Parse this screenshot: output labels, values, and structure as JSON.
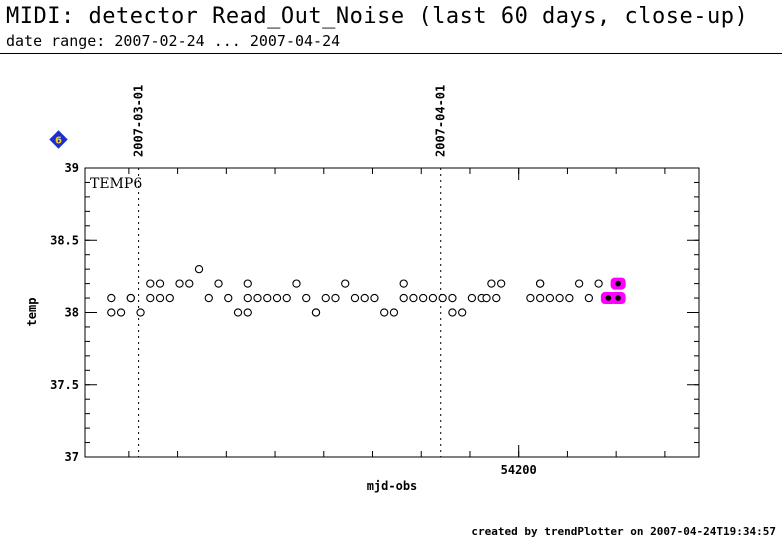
{
  "header": {
    "title": "MIDI: detector Read_Out_Noise (last 60 days, close-up)",
    "subtitle": "date range: 2007-02-24 ... 2007-04-24"
  },
  "footer": {
    "text": "created by trendPlotter on 2007-04-24T19:34:57"
  },
  "badge": {
    "text": "6",
    "color": "#1a2fd0",
    "text_color": "#ffd400"
  },
  "colors": {
    "highlight": "#ff00ff",
    "axis": "#000000"
  },
  "chart_data": {
    "type": "scatter",
    "panel_label": "TEMP6",
    "xlabel": "mjd-obs",
    "ylabel": "temp",
    "xlim": [
      54155.5,
      54218.5
    ],
    "ylim": [
      37,
      39
    ],
    "yticks": [
      37,
      37.5,
      38,
      38.5,
      39
    ],
    "ytick_labels": [
      "37",
      "37.5",
      "38",
      "38.5",
      "39"
    ],
    "xticks": [
      54200
    ],
    "xtick_labels": [
      "54200"
    ],
    "date_markers": [
      {
        "x": 54161.0,
        "label": "2007-03-01"
      },
      {
        "x": 54192.0,
        "label": "2007-04-01"
      }
    ],
    "points": [
      {
        "x": 54158.2,
        "y": 38.1
      },
      {
        "x": 54158.2,
        "y": 38.0
      },
      {
        "x": 54159.2,
        "y": 38.0
      },
      {
        "x": 54160.2,
        "y": 38.1
      },
      {
        "x": 54160.2,
        "y": 38.1
      },
      {
        "x": 54161.2,
        "y": 38.0
      },
      {
        "x": 54162.2,
        "y": 38.2
      },
      {
        "x": 54162.2,
        "y": 38.1
      },
      {
        "x": 54163.2,
        "y": 38.2
      },
      {
        "x": 54163.2,
        "y": 38.1
      },
      {
        "x": 54164.2,
        "y": 38.1
      },
      {
        "x": 54165.2,
        "y": 38.2
      },
      {
        "x": 54166.2,
        "y": 38.2
      },
      {
        "x": 54167.2,
        "y": 38.3
      },
      {
        "x": 54168.2,
        "y": 38.1
      },
      {
        "x": 54169.2,
        "y": 38.2
      },
      {
        "x": 54170.2,
        "y": 38.1
      },
      {
        "x": 54171.2,
        "y": 38.0
      },
      {
        "x": 54172.2,
        "y": 38.2
      },
      {
        "x": 54172.2,
        "y": 38.1
      },
      {
        "x": 54172.2,
        "y": 38.0
      },
      {
        "x": 54173.2,
        "y": 38.1
      },
      {
        "x": 54174.2,
        "y": 38.1
      },
      {
        "x": 54175.2,
        "y": 38.1
      },
      {
        "x": 54176.2,
        "y": 38.1
      },
      {
        "x": 54177.2,
        "y": 38.2
      },
      {
        "x": 54178.2,
        "y": 38.1
      },
      {
        "x": 54179.2,
        "y": 38.0
      },
      {
        "x": 54179.2,
        "y": 38.0
      },
      {
        "x": 54180.2,
        "y": 38.1
      },
      {
        "x": 54181.2,
        "y": 38.1
      },
      {
        "x": 54182.2,
        "y": 38.2
      },
      {
        "x": 54183.2,
        "y": 38.1
      },
      {
        "x": 54184.2,
        "y": 38.1
      },
      {
        "x": 54185.2,
        "y": 38.1
      },
      {
        "x": 54186.2,
        "y": 38.0
      },
      {
        "x": 54187.2,
        "y": 38.0
      },
      {
        "x": 54188.2,
        "y": 38.2
      },
      {
        "x": 54188.2,
        "y": 38.1
      },
      {
        "x": 54189.2,
        "y": 38.1
      },
      {
        "x": 54190.2,
        "y": 38.1
      },
      {
        "x": 54191.2,
        "y": 38.1
      },
      {
        "x": 54192.2,
        "y": 38.1
      },
      {
        "x": 54193.2,
        "y": 38.1
      },
      {
        "x": 54193.2,
        "y": 38.0
      },
      {
        "x": 54194.2,
        "y": 38.0
      },
      {
        "x": 54195.2,
        "y": 38.1
      },
      {
        "x": 54196.2,
        "y": 38.1
      },
      {
        "x": 54196.7,
        "y": 38.1
      },
      {
        "x": 54197.2,
        "y": 38.2
      },
      {
        "x": 54197.7,
        "y": 38.1
      },
      {
        "x": 54198.2,
        "y": 38.2
      },
      {
        "x": 54201.2,
        "y": 38.1
      },
      {
        "x": 54202.2,
        "y": 38.2
      },
      {
        "x": 54202.2,
        "y": 38.2
      },
      {
        "x": 54202.2,
        "y": 38.1
      },
      {
        "x": 54203.2,
        "y": 38.1
      },
      {
        "x": 54204.2,
        "y": 38.1
      },
      {
        "x": 54205.2,
        "y": 38.1
      },
      {
        "x": 54206.2,
        "y": 38.2
      },
      {
        "x": 54207.2,
        "y": 38.1
      },
      {
        "x": 54208.2,
        "y": 38.2
      }
    ],
    "highlighted_points": [
      {
        "x": 54209.2,
        "y": 38.1
      },
      {
        "x": 54210.2,
        "y": 38.1
      },
      {
        "x": 54210.2,
        "y": 38.2
      }
    ]
  }
}
